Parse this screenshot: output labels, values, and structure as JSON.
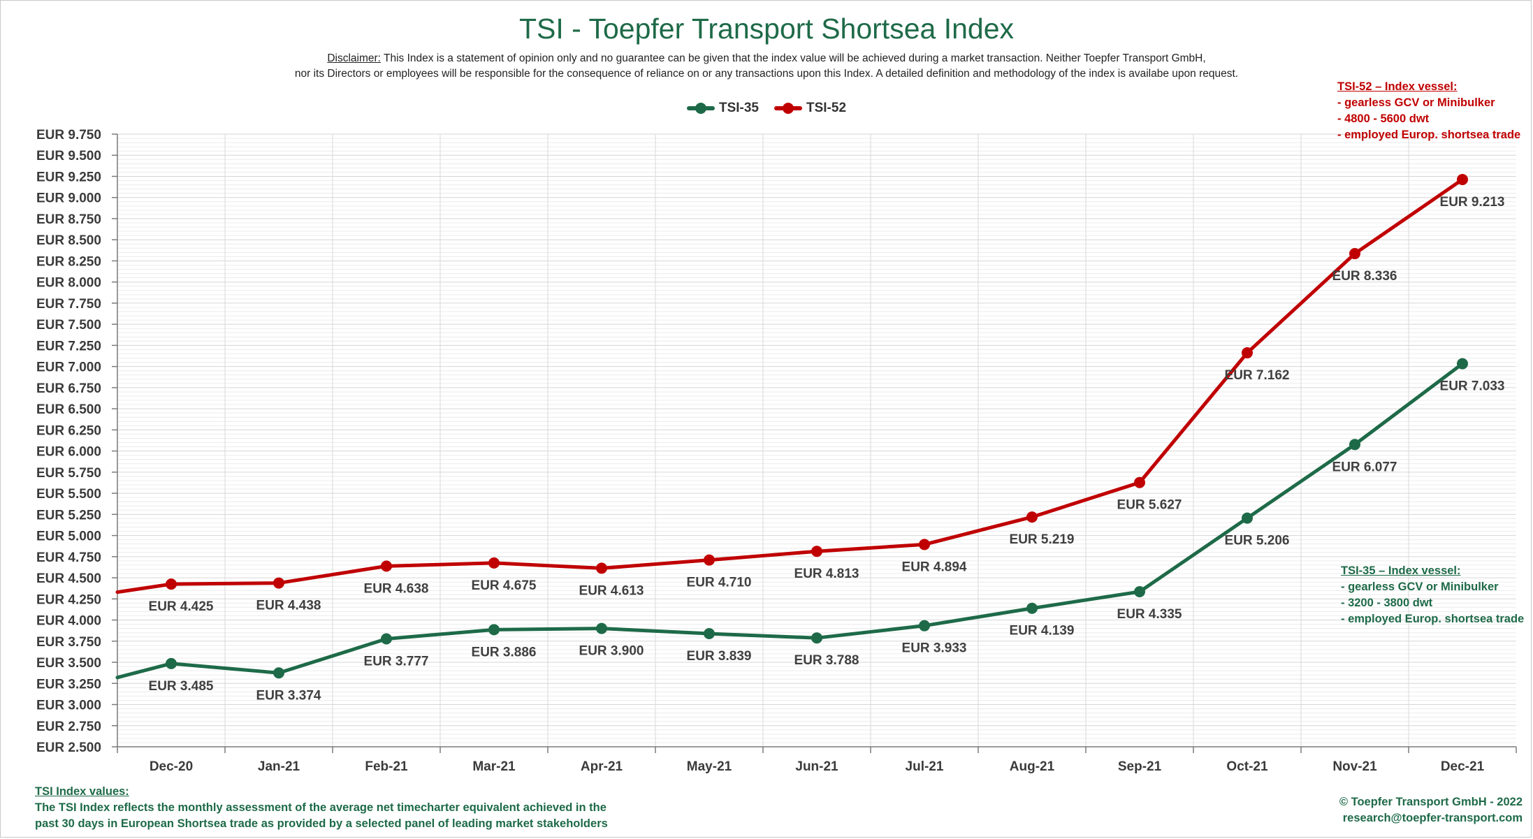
{
  "title": "TSI - Toepfer Transport Shortsea Index",
  "disclaimer": {
    "label": "Disclaimer:",
    "line1": " This Index is a statement of opinion only and no guarantee can be given that the index value will be achieved during a market transaction. Neither Toepfer Transport GmbH,",
    "line2": "nor its Directors or employees will be responsible for the consequence of reliance on or any transactions upon this Index.  A detailed definition and methodology of the index is availabe upon request."
  },
  "notes": {
    "tsi52": {
      "heading": "TSI-52 – Index vessel:",
      "lines": [
        "- gearless GCV or Minibulker",
        "- 4800 - 5600 dwt",
        "- employed Europ. shortsea trade"
      ]
    },
    "tsi35": {
      "heading": "TSI-35 – Index vessel:",
      "lines": [
        "- gearless GCV or Minibulker",
        "- 3200 - 3800 dwt",
        "- employed Europ. shortsea trade"
      ]
    }
  },
  "footer": {
    "left_heading": "TSI Index values:",
    "left_line1": "The TSI Index reflects the monthly assessment of the average net timecharter equivalent achieved in the",
    "left_line2": "past 30 days in European Shortsea trade as provided by a selected panel of leading market stakeholders",
    "right_line1": "© Toepfer Transport GmbH - 2022",
    "right_line2": "research@toepfer-transport.com"
  },
  "colors": {
    "tsi35": "#1e6a48",
    "tsi52": "#c00000",
    "title": "#1e6a48"
  },
  "chart_data": {
    "type": "line",
    "categories": [
      "Dec-20",
      "Jan-21",
      "Feb-21",
      "Mar-21",
      "Apr-21",
      "May-21",
      "Jun-21",
      "Jul-21",
      "Aug-21",
      "Sep-21",
      "Oct-21",
      "Nov-21",
      "Dec-21"
    ],
    "ylim": [
      2500,
      9750
    ],
    "ytick_step": 250,
    "ytick_labels": [
      "EUR 2.500",
      "EUR 2.750",
      "EUR 3.000",
      "EUR 3.250",
      "EUR 3.500",
      "EUR 3.750",
      "EUR 4.000",
      "EUR 4.250",
      "EUR 4.500",
      "EUR 4.750",
      "EUR 5.000",
      "EUR 5.250",
      "EUR 5.500",
      "EUR 5.750",
      "EUR 6.000",
      "EUR 6.250",
      "EUR 6.500",
      "EUR 6.750",
      "EUR 7.000",
      "EUR 7.250",
      "EUR 7.500",
      "EUR 7.750",
      "EUR 8.000",
      "EUR 8.250",
      "EUR 8.500",
      "EUR 8.750",
      "EUR 9.000",
      "EUR 9.250",
      "EUR 9.500",
      "EUR 9.750"
    ],
    "grid": true,
    "legend_position": "top-center",
    "series": [
      {
        "name": "TSI-35",
        "color": "#1e6a48",
        "start_value": 3320,
        "values": [
          3485,
          3374,
          3777,
          3886,
          3900,
          3839,
          3788,
          3933,
          4139,
          4335,
          5206,
          6077,
          7033
        ],
        "labels": [
          "EUR 3.485",
          "EUR 3.374",
          "EUR 3.777",
          "EUR 3.886",
          "EUR 3.900",
          "EUR 3.839",
          "EUR 3.788",
          "EUR 3.933",
          "EUR 4.139",
          "EUR 4.335",
          "EUR 5.206",
          "EUR 6.077",
          "EUR 7.033"
        ]
      },
      {
        "name": "TSI-52",
        "color": "#c00000",
        "start_value": 4330,
        "values": [
          4425,
          4438,
          4638,
          4675,
          4613,
          4710,
          4813,
          4894,
          5219,
          5627,
          7162,
          8336,
          9213
        ],
        "labels": [
          "EUR 4.425",
          "EUR 4.438",
          "EUR 4.638",
          "EUR 4.675",
          "EUR 4.613",
          "EUR 4.710",
          "EUR 4.813",
          "EUR 4.894",
          "EUR 5.219",
          "EUR 5.627",
          "EUR 7.162",
          "EUR 8.336",
          "EUR 9.213"
        ]
      }
    ]
  }
}
